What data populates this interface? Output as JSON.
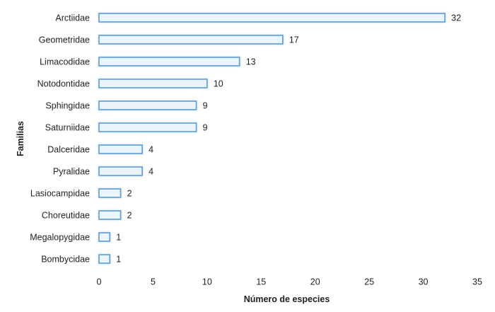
{
  "chart_data": {
    "type": "bar",
    "orientation": "horizontal",
    "categories": [
      "Arctiidae",
      "Geometridae",
      "Limacodidae",
      "Notodontidae",
      "Sphingidae",
      "Saturniidae",
      "Dalceridae",
      "Pyralidae",
      "Lasiocampidae",
      "Choreutidae",
      "Megalopygidae",
      "Bombycidae"
    ],
    "values": [
      32,
      17,
      13,
      10,
      9,
      9,
      4,
      4,
      2,
      2,
      1,
      1
    ],
    "title": "",
    "xlabel": "Número de especies",
    "ylabel": "Familias",
    "xlim": [
      0,
      35
    ],
    "xticks": [
      0,
      5,
      10,
      15,
      20,
      25,
      30,
      35
    ],
    "grid": false,
    "data_labels": true,
    "colors": {
      "bar_fill": "#eaf4fc",
      "bar_stroke": "#5b9bd5",
      "bar_glow": "#bdd7ee"
    }
  }
}
